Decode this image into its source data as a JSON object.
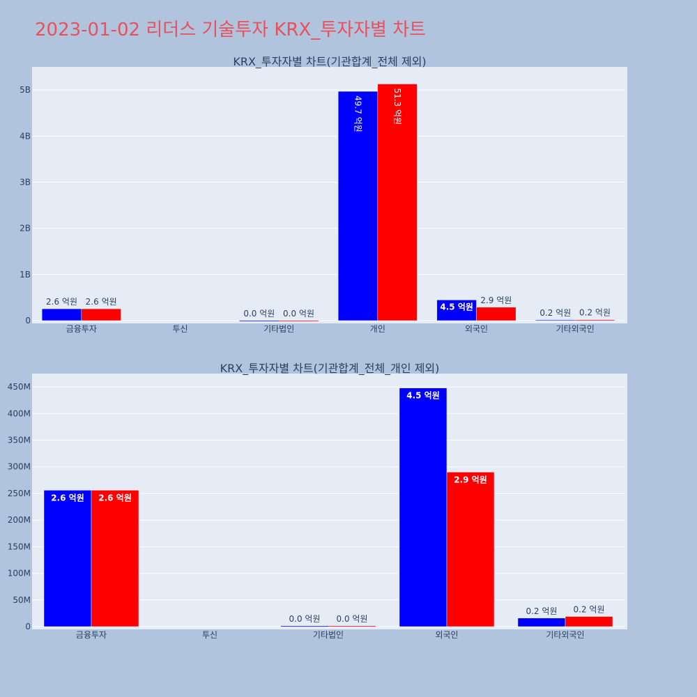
{
  "page": {
    "title": "2023-01-02 리더스 기술투자 KRX_투자자별 차트"
  },
  "colors": {
    "background": "#b0c4de",
    "plot_bg": "#e5ecf6",
    "title": "#e8505b",
    "series_a": "#0000ff",
    "series_b": "#ff0000"
  },
  "chart_data": [
    {
      "type": "bar",
      "title": "KRX_투자자별 차트(기관합계_전체 제외)",
      "categories": [
        "금융투자",
        "투신",
        "기타법인",
        "개인",
        "외국인",
        "기타외국인"
      ],
      "series": [
        {
          "color": "#0000ff",
          "values": [
            256000000,
            0,
            1000000,
            4970000000,
            448000000,
            16000000
          ],
          "labels": [
            "2.6 억원",
            "",
            "0.0 억원",
            "49.7 억원",
            "4.5 억원",
            "0.2 억원"
          ]
        },
        {
          "color": "#ff0000",
          "values": [
            256000000,
            0,
            1000000,
            5130000000,
            290000000,
            19000000
          ],
          "labels": [
            "2.6 억원",
            "",
            "0.0 억원",
            "51.3 억원",
            "2.9 억원",
            "0.2 억원"
          ]
        }
      ],
      "ylim": [
        0,
        5500000000
      ],
      "yticks": [
        0,
        1000000000,
        2000000000,
        3000000000,
        4000000000,
        5000000000
      ],
      "yticklabels": [
        "0",
        "1B",
        "2B",
        "3B",
        "4B",
        "5B"
      ],
      "grid": true
    },
    {
      "type": "bar",
      "title": "KRX_투자자별 차트(기관합계_전체_개인 제외)",
      "categories": [
        "금융투자",
        "투신",
        "기타법인",
        "외국인",
        "기타외국인"
      ],
      "series": [
        {
          "color": "#0000ff",
          "values": [
            256000000,
            0,
            1000000,
            448000000,
            16000000
          ],
          "labels": [
            "2.6 억원",
            "",
            "0.0 억원",
            "4.5 억원",
            "0.2 억원"
          ]
        },
        {
          "color": "#ff0000",
          "values": [
            256000000,
            0,
            1000000,
            290000000,
            19000000
          ],
          "labels": [
            "2.6 억원",
            "",
            "0.0 억원",
            "2.9 억원",
            "0.2 억원"
          ]
        }
      ],
      "ylim": [
        0,
        475000000
      ],
      "yticks": [
        0,
        50000000,
        100000000,
        150000000,
        200000000,
        250000000,
        300000000,
        350000000,
        400000000,
        450000000
      ],
      "yticklabels": [
        "0",
        "50M",
        "100M",
        "150M",
        "200M",
        "250M",
        "300M",
        "350M",
        "400M",
        "450M"
      ],
      "grid": true
    }
  ]
}
